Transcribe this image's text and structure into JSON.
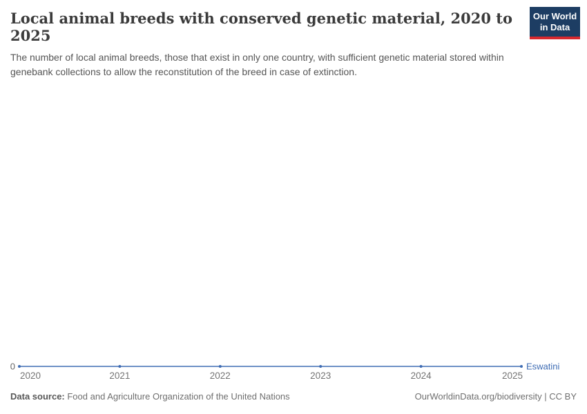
{
  "header": {
    "title": "Local animal breeds with conserved genetic material, 2020 to 2025",
    "subtitle": "The number of local animal breeds, those that exist in only one country, with sufficient genetic material stored within genebank collections to allow the reconstitution of the breed in case of extinction."
  },
  "logo": {
    "line1": "Our World",
    "line2": "in Data"
  },
  "chart_data": {
    "type": "line",
    "title": "Local animal breeds with conserved genetic material, 2020 to 2025",
    "x": [
      2020,
      2021,
      2022,
      2023,
      2024,
      2025
    ],
    "series": [
      {
        "name": "Eswatini",
        "values": [
          0,
          0,
          0,
          0,
          0,
          0
        ],
        "color": "#3d6bb3"
      }
    ],
    "xlabel": "",
    "ylabel": "",
    "yticks": [
      0
    ],
    "ylim": [
      0,
      null
    ],
    "grid": false,
    "legend_position": "end-of-line"
  },
  "axis": {
    "zero_label": "0"
  },
  "footer": {
    "datasource_label": "Data source:",
    "datasource_value": " Food and Agriculture Organization of the United Nations",
    "credit": "OurWorldinData.org/biodiversity | CC BY"
  },
  "colors": {
    "line": "#3d6bb3",
    "logo_navy": "#1d3d63",
    "logo_red": "#d7292f"
  }
}
